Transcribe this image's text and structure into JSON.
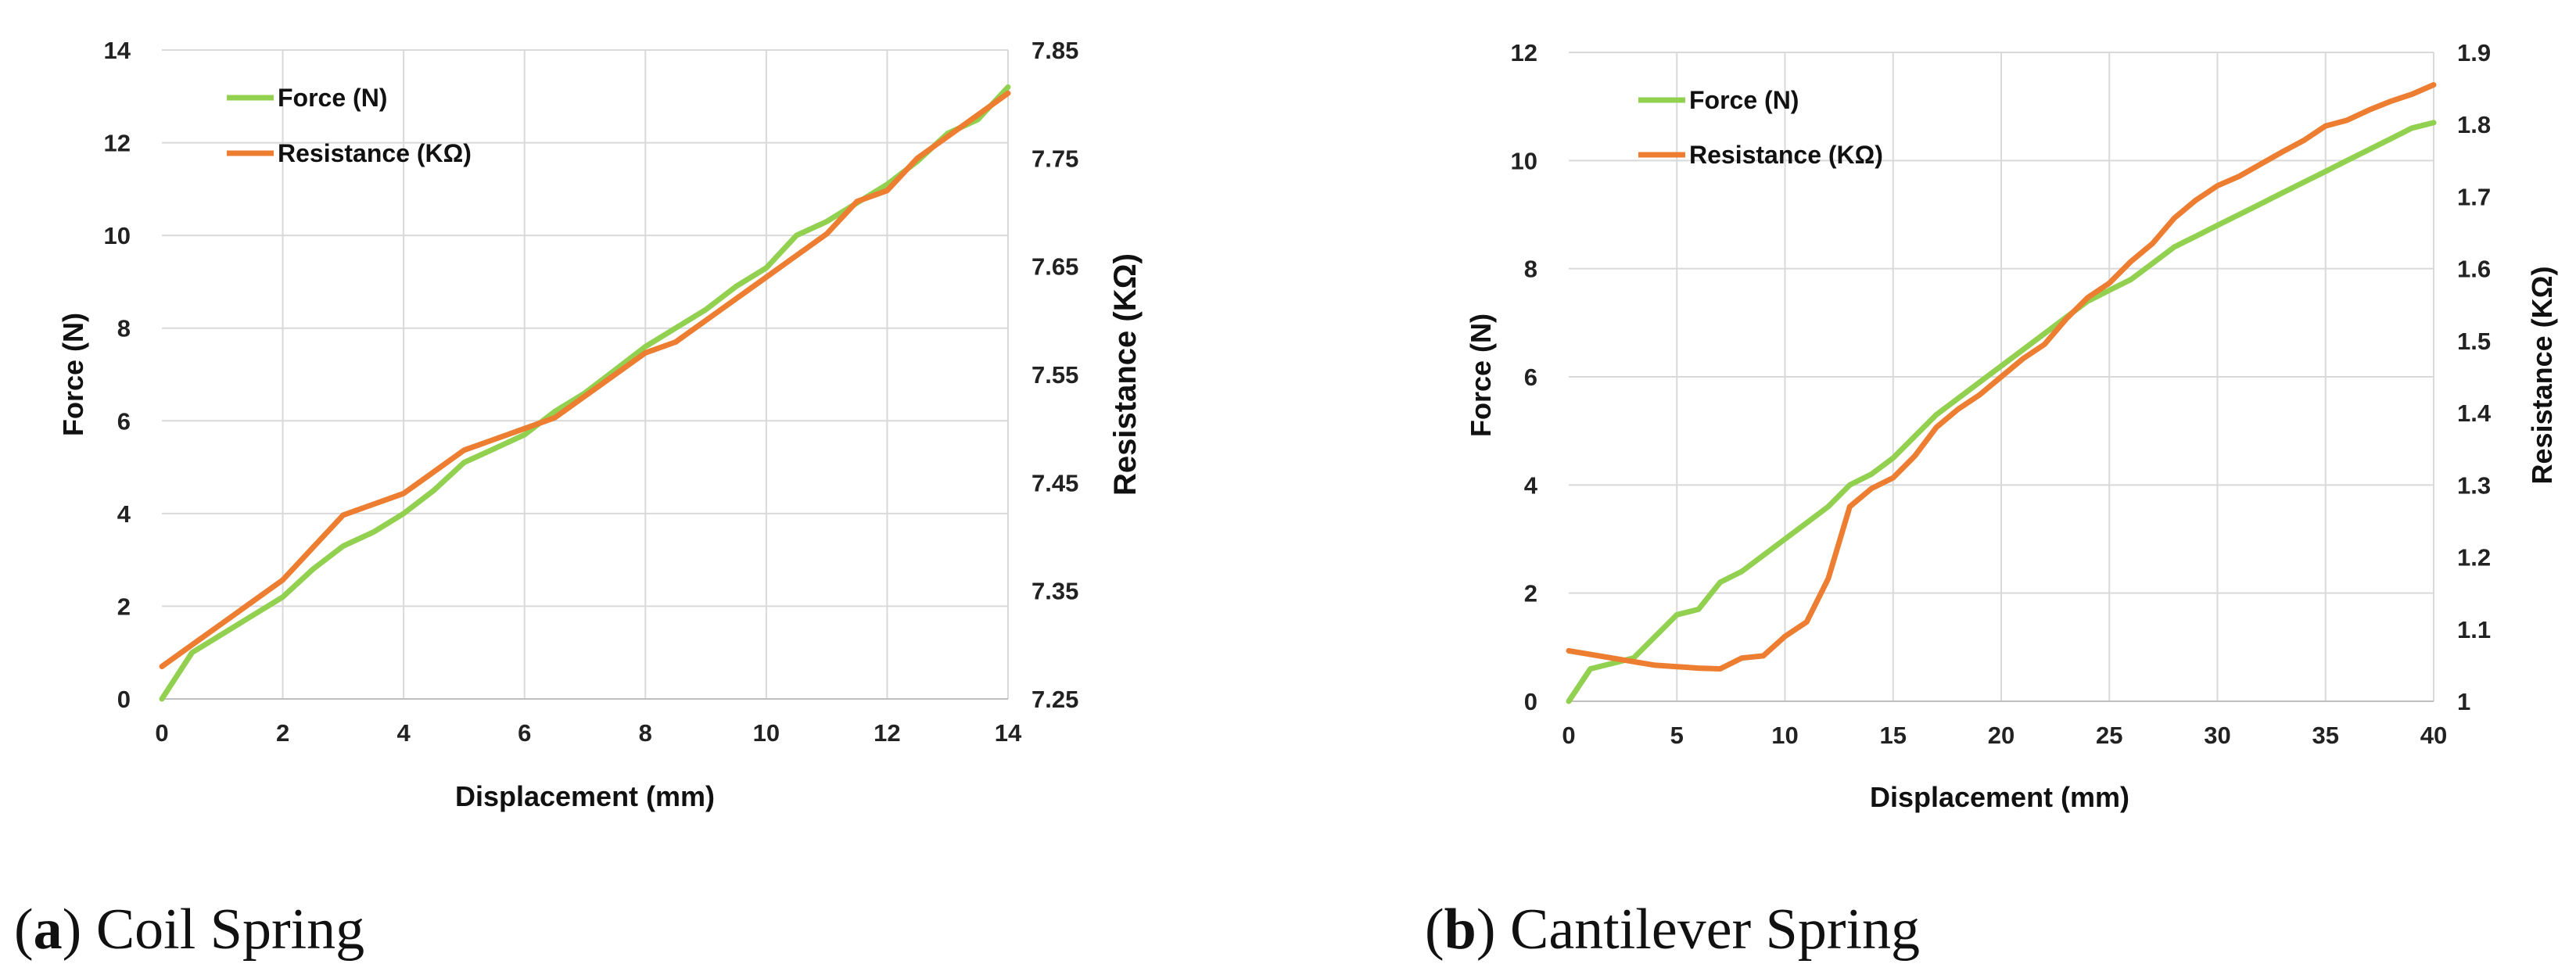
{
  "colors": {
    "force": "#92d050",
    "resistance": "#ed7d31",
    "grid": "#d9d9d9",
    "axis": "#bfbfbf"
  },
  "panels": [
    {
      "caption": {
        "open": "(",
        "letter": "a",
        "close": ")",
        "text": " Coil Spring"
      },
      "legend": {
        "force": "Force (N)",
        "resistance": "Resistance  (KΩ)"
      }
    },
    {
      "caption": {
        "open": "(",
        "letter": "b",
        "close": ")",
        "text": " Cantilever Spring"
      },
      "legend": {
        "force": "Force (N)",
        "resistance": "Resistance  (KΩ)"
      }
    }
  ],
  "chart_data": [
    {
      "type": "line",
      "title": "Coil Spring",
      "xlabel": "Displacement (mm)",
      "ylabel": "Force (N)",
      "y2label": "Resistance  (KΩ)",
      "xlim": [
        0,
        14
      ],
      "ylim": [
        0,
        14
      ],
      "y2lim": [
        7.25,
        7.85
      ],
      "xticks": [
        "0",
        "2",
        "4",
        "6",
        "8",
        "10",
        "12",
        "14"
      ],
      "yticks": [
        "0",
        "2",
        "4",
        "6",
        "8",
        "10",
        "12",
        "14"
      ],
      "y2ticks": [
        "7.25",
        "7.35",
        "7.45",
        "7.55",
        "7.65",
        "7.75",
        "7.85"
      ],
      "legend_position": "top-left",
      "series": [
        {
          "name": "Force (N)",
          "axis": "left",
          "color_key": "force",
          "x": [
            0,
            0.5,
            1,
            1.5,
            2,
            2.5,
            3,
            3.5,
            4,
            4.5,
            5,
            5.5,
            6,
            6.5,
            7,
            7.5,
            8,
            8.5,
            9,
            9.5,
            10,
            10.5,
            11,
            11.5,
            12,
            12.5,
            13,
            13.5,
            14
          ],
          "values": [
            0,
            1.0,
            1.4,
            1.8,
            2.2,
            2.8,
            3.3,
            3.6,
            4.0,
            4.5,
            5.1,
            5.4,
            5.7,
            6.2,
            6.6,
            7.1,
            7.6,
            8.0,
            8.4,
            8.9,
            9.3,
            10.0,
            10.3,
            10.7,
            11.1,
            11.6,
            12.2,
            12.5,
            13.2
          ]
        },
        {
          "name": "Resistance  (KΩ)",
          "axis": "right",
          "color_key": "resistance",
          "x": [
            0,
            0.5,
            1,
            1.5,
            2,
            2.5,
            3,
            3.5,
            4,
            4.5,
            5,
            5.5,
            6,
            6.5,
            7,
            7.5,
            8,
            8.5,
            9,
            9.5,
            10,
            10.5,
            11,
            11.5,
            12,
            12.5,
            13,
            13.5,
            14
          ],
          "values": [
            7.28,
            7.3,
            7.32,
            7.34,
            7.36,
            7.39,
            7.42,
            7.43,
            7.44,
            7.46,
            7.48,
            7.49,
            7.5,
            7.51,
            7.53,
            7.55,
            7.57,
            7.58,
            7.6,
            7.62,
            7.64,
            7.66,
            7.68,
            7.71,
            7.72,
            7.75,
            7.77,
            7.79,
            7.81
          ]
        }
      ]
    },
    {
      "type": "line",
      "title": "Cantilever Spring",
      "xlabel": "Displacement (mm)",
      "ylabel": "Force (N)",
      "y2label": "Resistance  (KΩ)",
      "xlim": [
        0,
        40
      ],
      "ylim": [
        0,
        12
      ],
      "y2lim": [
        1,
        1.9
      ],
      "xticks": [
        "0",
        "5",
        "10",
        "15",
        "20",
        "25",
        "30",
        "35",
        "40"
      ],
      "yticks": [
        "0",
        "2",
        "4",
        "6",
        "8",
        "10",
        "12"
      ],
      "y2ticks": [
        "1",
        "1.1",
        "1.2",
        "1.3",
        "1.4",
        "1.5",
        "1.6",
        "1.7",
        "1.8",
        "1.9"
      ],
      "legend_position": "top-left",
      "series": [
        {
          "name": "Force (N)",
          "axis": "left",
          "color_key": "force",
          "x": [
            0,
            1,
            2,
            3,
            4,
            5,
            6,
            7,
            8,
            9,
            10,
            11,
            12,
            13,
            14,
            15,
            16,
            17,
            18,
            19,
            20,
            21,
            22,
            23,
            24,
            25,
            26,
            27,
            28,
            29,
            30,
            31,
            32,
            33,
            34,
            35,
            36,
            37,
            38,
            39,
            40
          ],
          "values": [
            0,
            0.6,
            0.7,
            0.8,
            1.2,
            1.6,
            1.7,
            2.2,
            2.4,
            2.7,
            3.0,
            3.3,
            3.6,
            4.0,
            4.2,
            4.5,
            4.9,
            5.3,
            5.6,
            5.9,
            6.2,
            6.5,
            6.8,
            7.1,
            7.4,
            7.6,
            7.8,
            8.1,
            8.4,
            8.6,
            8.8,
            9.0,
            9.2,
            9.4,
            9.6,
            9.8,
            10.0,
            10.2,
            10.4,
            10.6,
            10.7
          ]
        },
        {
          "name": "Resistance  (KΩ)",
          "axis": "right",
          "color_key": "resistance",
          "x": [
            0,
            1,
            2,
            3,
            4,
            5,
            6,
            7,
            8,
            9,
            10,
            11,
            12,
            13,
            14,
            15,
            16,
            17,
            18,
            19,
            20,
            21,
            22,
            23,
            24,
            25,
            26,
            27,
            28,
            29,
            30,
            31,
            32,
            33,
            34,
            35,
            36,
            37,
            38,
            39,
            40
          ],
          "values": [
            1.07,
            1.065,
            1.06,
            1.055,
            1.05,
            1.048,
            1.046,
            1.045,
            1.06,
            1.063,
            1.09,
            1.11,
            1.17,
            1.27,
            1.295,
            1.31,
            1.34,
            1.38,
            1.405,
            1.425,
            1.45,
            1.475,
            1.495,
            1.53,
            1.56,
            1.58,
            1.61,
            1.635,
            1.67,
            1.695,
            1.715,
            1.728,
            1.745,
            1.762,
            1.778,
            1.798,
            1.806,
            1.82,
            1.832,
            1.842,
            1.855
          ]
        }
      ]
    }
  ]
}
